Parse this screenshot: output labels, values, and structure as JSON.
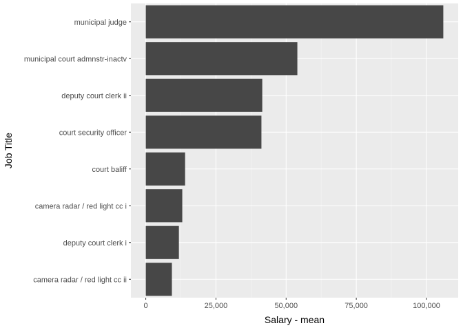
{
  "chart_data": {
    "type": "bar",
    "orientation": "horizontal",
    "categories": [
      "municipal judge",
      "municipal court admnstr-inactv",
      "deputy court clerk ii",
      "court security officer",
      "court baliff",
      "camera radar / red light cc i",
      "deputy court clerk i",
      "camera radar / red light cc ii"
    ],
    "values": [
      106000,
      54000,
      41500,
      41200,
      14000,
      13000,
      11800,
      9300
    ],
    "xlabel": "Salary - mean",
    "ylabel": "Job Title",
    "xlim": [
      -5300,
      111300
    ],
    "x_ticks": [
      0,
      25000,
      50000,
      75000,
      100000
    ],
    "x_tick_labels": [
      "0",
      "25,000",
      "50,000",
      "75,000",
      "100,000"
    ],
    "grid": true,
    "colors": {
      "bar": "#474747",
      "panel": "#ebebeb",
      "grid_major": "#ffffff",
      "grid_minor": "#f5f5f5"
    }
  }
}
